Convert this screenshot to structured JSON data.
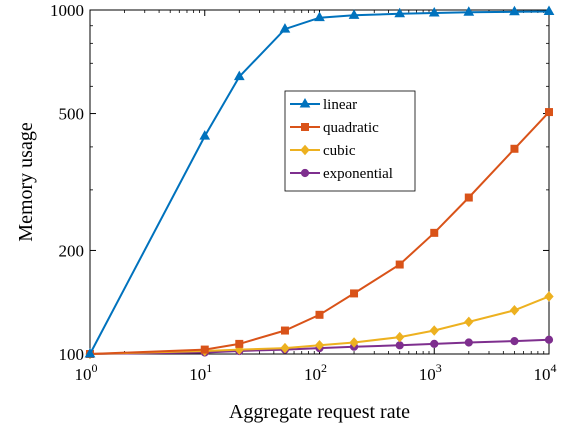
{
  "chart_data": {
    "type": "line",
    "title": "",
    "xlabel": "Aggregate request rate",
    "ylabel": "Memory usage",
    "xscale": "log",
    "yscale": "log",
    "xlim": [
      1,
      10000
    ],
    "ylim": [
      100,
      1000
    ],
    "x_ticks": [
      {
        "value": 1,
        "base": "10",
        "exp": "0"
      },
      {
        "value": 10,
        "base": "10",
        "exp": "1"
      },
      {
        "value": 100,
        "base": "10",
        "exp": "2"
      },
      {
        "value": 1000,
        "base": "10",
        "exp": "3"
      },
      {
        "value": 10000,
        "base": "10",
        "exp": "4"
      }
    ],
    "y_ticks": [
      {
        "value": 100,
        "label": "100"
      },
      {
        "value": 200,
        "label": "200"
      },
      {
        "value": 500,
        "label": "500"
      },
      {
        "value": 1000,
        "label": "1000"
      }
    ],
    "grid": false,
    "legend_position": "center-right",
    "x": [
      1,
      10,
      20,
      50,
      100,
      200,
      500,
      1000,
      2000,
      5000,
      10000
    ],
    "series": [
      {
        "name": "linear",
        "color": "#0072BD",
        "marker": "triangle",
        "values": [
          100,
          430,
          640,
          880,
          950,
          965,
          975,
          980,
          985,
          988,
          990
        ]
      },
      {
        "name": "quadratic",
        "color": "#D95319",
        "marker": "square",
        "values": [
          100,
          103,
          107,
          117,
          130,
          150,
          182,
          225,
          285,
          395,
          505
        ]
      },
      {
        "name": "cubic",
        "color": "#EDB120",
        "marker": "diamond",
        "values": [
          100,
          102,
          103,
          104,
          106,
          108,
          112,
          117,
          124,
          134,
          147
        ]
      },
      {
        "name": "exponential",
        "color": "#7E2F8E",
        "marker": "circle",
        "values": [
          100,
          101,
          102,
          103,
          104,
          105,
          106,
          107,
          108,
          109,
          110
        ]
      }
    ]
  }
}
